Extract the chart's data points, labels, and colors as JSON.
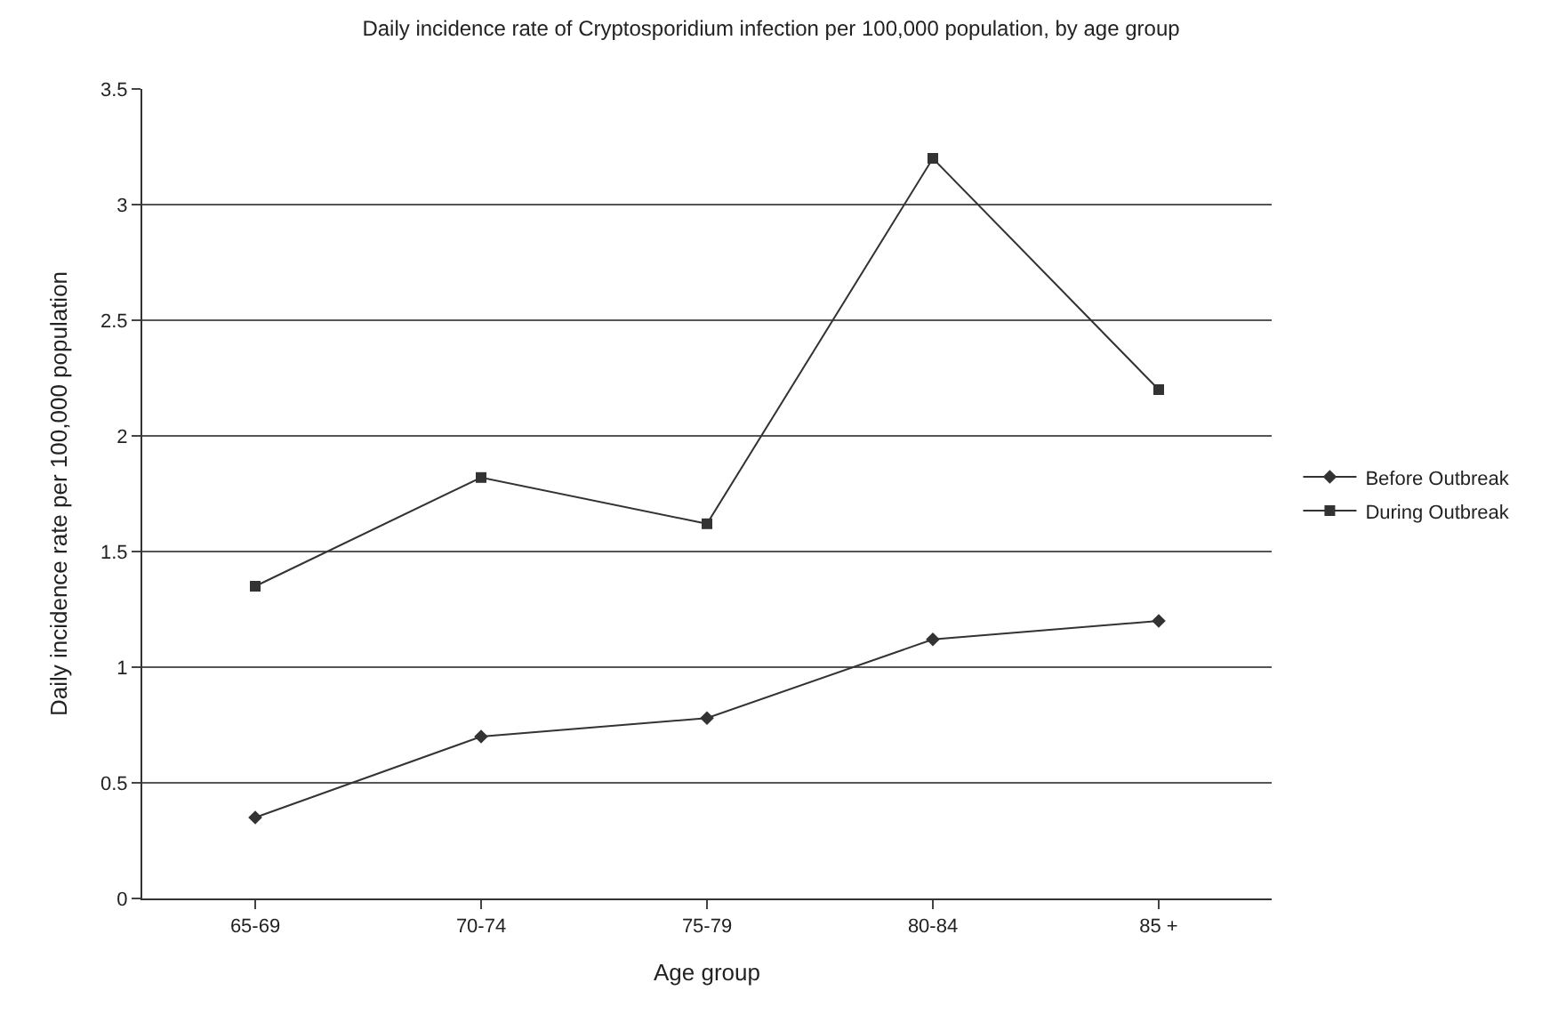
{
  "chart_data": {
    "type": "line",
    "title": "Daily incidence rate of Cryptosporidium infection per 100,000 population, by age group",
    "xlabel": "Age group",
    "ylabel": "Daily incidence rate per 100,000 population",
    "categories": [
      "65-69",
      "70-74",
      "75-79",
      "80-84",
      "85 +"
    ],
    "series": [
      {
        "name": "Before Outbreak",
        "color": "#333333",
        "marker": "diamond",
        "values": [
          0.35,
          0.7,
          0.78,
          1.12,
          1.2
        ]
      },
      {
        "name": "During Outbreak",
        "color": "#333333",
        "marker": "square",
        "values": [
          1.35,
          1.82,
          1.62,
          3.2,
          2.2
        ]
      }
    ],
    "ylim": [
      0,
      3.5
    ],
    "yticks": [
      0,
      0.5,
      1,
      1.5,
      2,
      2.5,
      3,
      3.5
    ],
    "grid": "y",
    "legend": "right",
    "line_style": "solid"
  }
}
